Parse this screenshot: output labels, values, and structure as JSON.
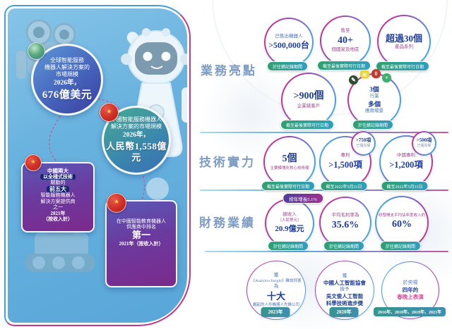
{
  "colors": {
    "accent_pink": "#c2368f",
    "accent_blue": "#4aa3dd",
    "panel_blue": "#63aedd",
    "number_navy": "#1e3e96",
    "badge_green": "#2fa06f",
    "badge_teal": "#35948f"
  },
  "left_panel": {
    "global_market_circle": {
      "line1": "全球智能服務",
      "line2": "機器人解決方案的",
      "line3": "市場規模",
      "year": "2026年，",
      "value": "676億美元"
    },
    "china_market_circle": {
      "line1": "中國智能服務機器人",
      "line2": "解決方案的市場規模",
      "year": "2026年，",
      "value": "人民幣1,558億元"
    },
    "top5_box": {
      "line1": "中國兩大",
      "pill1": "以全棧式技術",
      "line2": "驅動的",
      "pill2": "前五大",
      "line3": "智能服務機器人",
      "line4": "解決方案提供商",
      "line5": "之一",
      "line6": "2021年",
      "line7": "（按收入計）"
    },
    "rank1_box": {
      "line1": "在中國智能教育機器人",
      "line2": "供應商中排名",
      "rank": "第一",
      "note": "2021年（按收入計）"
    }
  },
  "business": {
    "title": "業務亮點",
    "sold": {
      "label": "已售出機器人",
      "value": ">500,000台",
      "badge": "於往績記錄期間"
    },
    "countries": {
      "label_top": "售至",
      "value": "40+",
      "label": "個國家及地區",
      "badge": "截至最後實際可行日期"
    },
    "products": {
      "value": "超過30個",
      "label": "產品系列",
      "badge": "截至最後實際可行日期"
    },
    "clients": {
      "value": ">900個",
      "label": "企業級客戶",
      "badge": "截至最後實際可行日期"
    },
    "industries": {
      "value1": "3個",
      "label1": "行業",
      "value2": "多個",
      "label2": "應用場景",
      "badge": "於往績記錄期間",
      "icons": [
        {
          "glyph": "✎"
        },
        {
          "glyph": "▣"
        },
        {
          "glyph": "0"
        },
        {
          "glyph": "+"
        }
      ]
    }
  },
  "tech": {
    "title": "技術實力",
    "stacks": {
      "value": "5個",
      "label": "主要模塊化核心技術棧",
      "badge": "截至最後實際可行日期"
    },
    "patents": {
      "label": "專利",
      "value": ">1,500項",
      "sup_value": ">750項",
      "sup_label": "已獲授權",
      "badge": "截至2022年5月31日"
    },
    "cn_patents": {
      "label": "中國專利",
      "value": ">1,200項",
      "sup_value": ">500項",
      "sup_label": "已獲授權",
      "badge": "截至2022年5月31日"
    }
  },
  "finance": {
    "title": "財務業績",
    "revenue": {
      "pill": "按年增長5.1%",
      "label1": "總收入",
      "label2": "（人民幣元）",
      "value": "20.9億元",
      "badge": "於往績記錄期間"
    },
    "margin": {
      "label": "平均毛利率為",
      "value": "35.6%",
      "badge": "於往績記錄期間"
    },
    "rnd": {
      "label": "研發開支平均佔年度收入約",
      "value": "60%",
      "badge": "於往績記錄期間"
    }
  },
  "awards": {
    "analytics": {
      "line1": "獲",
      "line2": "《Analytics Insight》雜誌評選",
      "line3": "為",
      "value": "十大",
      "line4": "崛起的人形機器人先鋒公司",
      "badge": "2023年"
    },
    "caai": {
      "line1": "獲",
      "line2": "中國人工智能協會",
      "line3": "授予",
      "line4": "吳文俊人工智能",
      "line5": "科學技術進步獎",
      "badge": "2020年"
    },
    "gala": {
      "line1": "於央視",
      "line2": "四年的",
      "highlight": "春晚上表演",
      "badge": "2016年、2018年、2019年、2021年"
    }
  }
}
